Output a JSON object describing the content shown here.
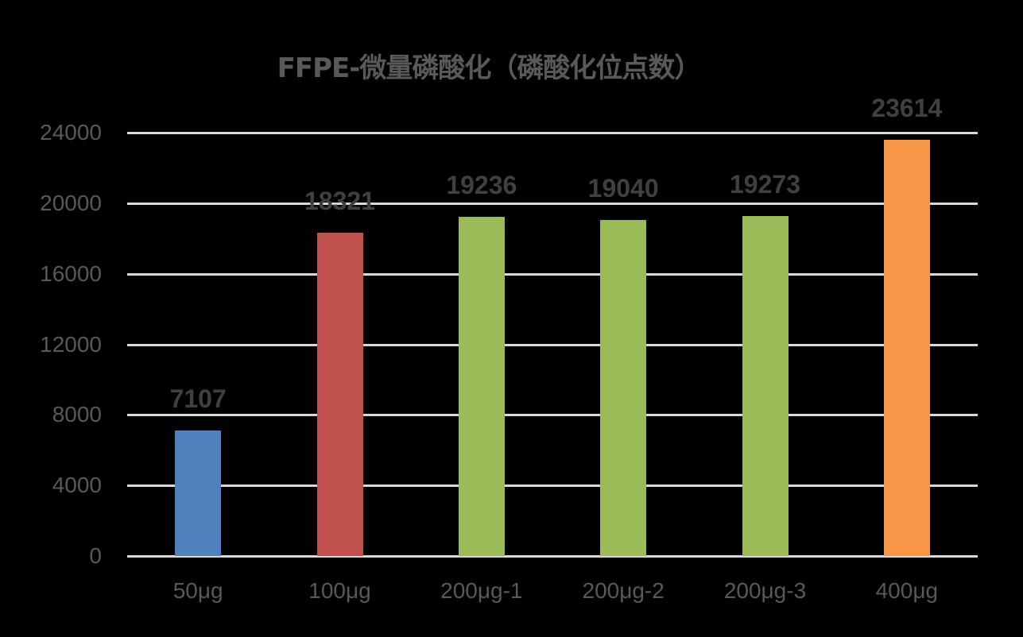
{
  "chart_data": {
    "type": "bar",
    "title": "FFPE-微量磷酸化（磷酸化位点数）",
    "xlabel": "",
    "ylabel": "",
    "categories": [
      "50μg",
      "100μg",
      "200μg-1",
      "200μg-2",
      "200μg-3",
      "400μg"
    ],
    "values": [
      7107,
      18321,
      19236,
      19040,
      19273,
      23614
    ],
    "colors": [
      "#4f81bd",
      "#c0504d",
      "#9bbb59",
      "#9bbb59",
      "#9bbb59",
      "#f79646"
    ],
    "data_labels": [
      "7107",
      "18321",
      "19236",
      "19040",
      "19273",
      "23614"
    ],
    "ylim": [
      0,
      24000
    ],
    "yticks": [
      "0",
      "4000",
      "8000",
      "12000",
      "16000",
      "20000",
      "24000"
    ],
    "grid": true,
    "legend": null,
    "background": "#000000"
  }
}
